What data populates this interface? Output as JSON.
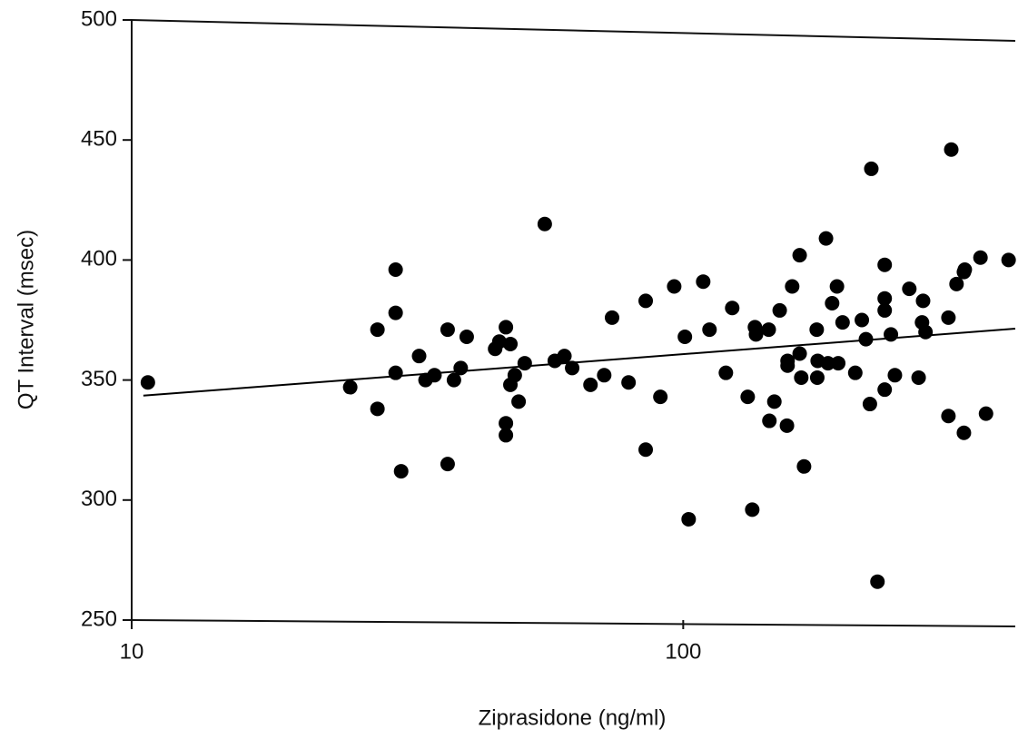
{
  "chart_data": {
    "type": "scatter",
    "x_label": "Ziprasidone (ng/ml)",
    "y_label": "QT Interval (msec)",
    "xlim": [
      10,
      400
    ],
    "ylim": [
      250,
      500
    ],
    "xticks": [
      10,
      100
    ],
    "yticks": [
      250,
      300,
      350,
      400,
      450,
      500
    ],
    "x_scale": "log",
    "grid": false,
    "color": "#000000",
    "x": [
      10.7,
      24.9,
      27.9,
      27.9,
      30.1,
      30.1,
      30.1,
      30.8,
      33.2,
      34.1,
      35.4,
      37.4,
      37.4,
      38.4,
      39.5,
      40.5,
      45.6,
      46.4,
      47.7,
      48.6,
      47.7,
      47.7,
      48.6,
      49.5,
      50.3,
      51.6,
      56.1,
      58.5,
      60.9,
      62.9,
      67.9,
      71.9,
      74.3,
      79.6,
      85.5,
      85.5,
      90.9,
      96.3,
      100.7,
      102.3,
      108.7,
      111.6,
      119.5,
      122.7,
      130.9,
      133.4,
      134.9,
      135.5,
      142.9,
      143.3,
      146.3,
      149.6,
      154.2,
      154.6,
      154.6,
      157.6,
      162.6,
      162.6,
      163.7,
      165.6,
      174.6,
      175.0,
      175.3,
      181.5,
      183.0,
      186.2,
      190.0,
      191.0,
      194.5,
      205.1,
      210.8,
      214.4,
      218.0,
      219.3,
      225.0,
      231.9,
      231.9,
      231.9,
      231.9,
      238.0,
      242.0,
      257.0,
      267.2,
      271.0,
      272.2,
      275.0,
      302.6,
      302.6,
      306.2,
      313.0,
      322.8,
      322.8,
      324.0,
      345.9,
      354.0,
      389.0
    ],
    "y": [
      349,
      347,
      371,
      338,
      396,
      378,
      353,
      312,
      360,
      350,
      352,
      371,
      315,
      350,
      355,
      368,
      363,
      366,
      372,
      365,
      332,
      327,
      348,
      352,
      341,
      357,
      415,
      358,
      360,
      355,
      348,
      352,
      376,
      349,
      383,
      321,
      343,
      389,
      368,
      292,
      391,
      371,
      353,
      380,
      343,
      296,
      372,
      369,
      371,
      333,
      341,
      379,
      331,
      356,
      358,
      389,
      402,
      361,
      351,
      314,
      371,
      351,
      358,
      409,
      357,
      382,
      389,
      357,
      374,
      353,
      375,
      367,
      340,
      438,
      266,
      398,
      384,
      379,
      346,
      369,
      352,
      388,
      351,
      374,
      383,
      370,
      376,
      335,
      446,
      390,
      328,
      395,
      396,
      401,
      336,
      400
    ],
    "fit": {
      "x": [
        10.5,
        400
      ],
      "y": [
        343.5,
        371.4
      ]
    }
  }
}
